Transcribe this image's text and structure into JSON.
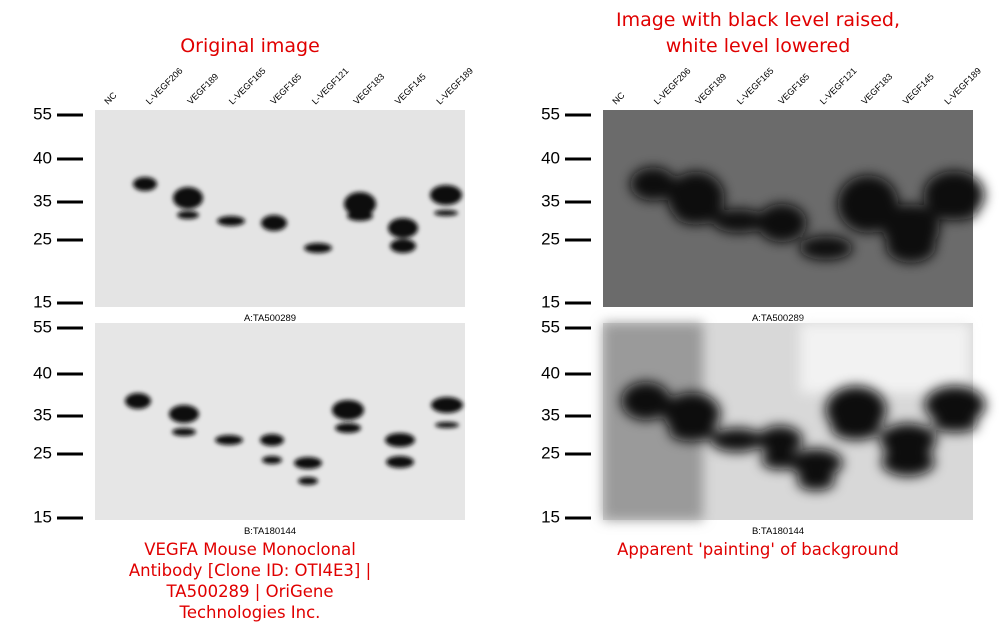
{
  "left": {
    "title_lines": [
      "Original image"
    ],
    "caption_lines": [
      "VEGFA Mouse Monoclonal",
      "Antibody [Clone ID: OTI4E3] |",
      "TA500289 | OriGene",
      "Technologies Inc."
    ]
  },
  "right": {
    "title_lines": [
      "Image with black level raised,",
      "white level lowered"
    ],
    "caption_lines": [
      "Apparent 'painting' of background"
    ]
  },
  "lanes": [
    "NC",
    "L-VEGF206",
    "VEGF189",
    "L-VEGF165",
    "VEGF165",
    "L-VEGF121",
    "VEGF183",
    "VEGF145",
    "L-VEGF189"
  ],
  "markers": [
    55,
    40,
    35,
    25,
    15
  ],
  "blot_labels": [
    "A:TA500289",
    "B:TA180144"
  ]
}
